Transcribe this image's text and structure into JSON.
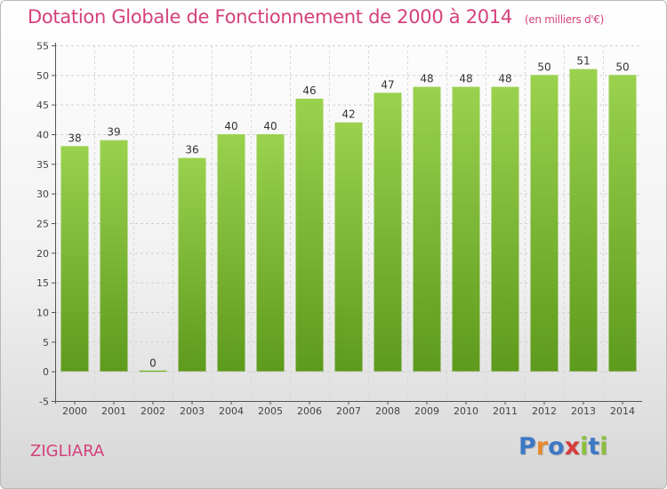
{
  "title": "Dotation Globale de Fonctionnement de 2000 à 2014",
  "unit_note": "(en milliers d'€)",
  "city": "ZIGLIARA",
  "logo": {
    "text": "Proxiti",
    "colors": [
      "#3d78c4",
      "#e6892e",
      "#3d78c4",
      "#d63b3b",
      "#8cbf3f",
      "#3d78c4",
      "#8cbf3f"
    ]
  },
  "chart_data": {
    "type": "bar",
    "categories": [
      "2000",
      "2001",
      "2002",
      "2003",
      "2004",
      "2005",
      "2006",
      "2007",
      "2008",
      "2009",
      "2010",
      "2011",
      "2012",
      "2013",
      "2014"
    ],
    "values": [
      38,
      39,
      0,
      36,
      40,
      40,
      46,
      42,
      47,
      48,
      48,
      48,
      50,
      51,
      50
    ],
    "ylim": [
      -5,
      55
    ],
    "yticks": [
      -5,
      0,
      5,
      10,
      15,
      20,
      25,
      30,
      35,
      40,
      45,
      50,
      55
    ],
    "grid": true,
    "bar_color": "#8cc63f",
    "bar_color_dark": "#5e9a1c"
  }
}
